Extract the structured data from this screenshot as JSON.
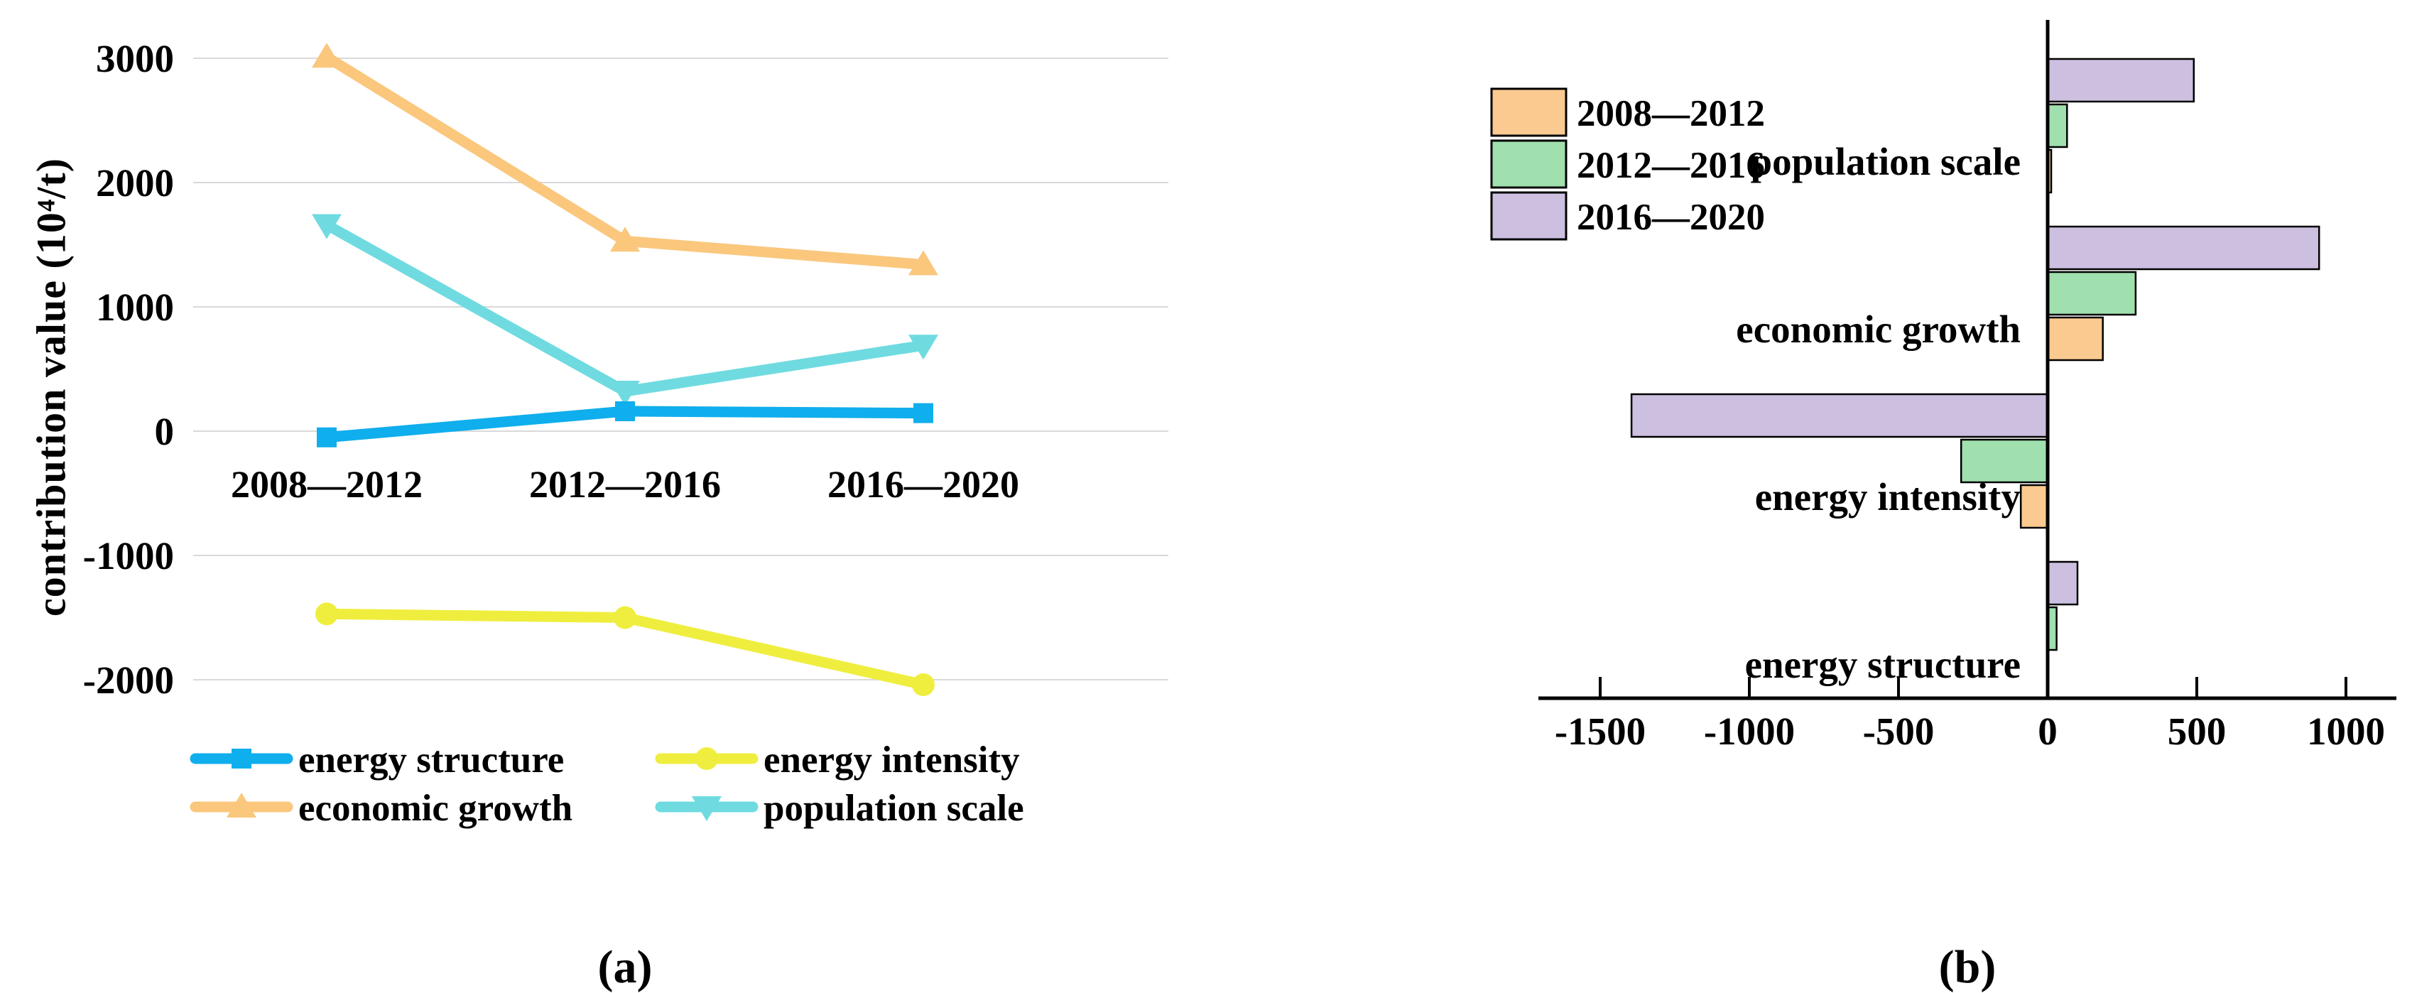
{
  "figure": {
    "caption_a": "(a)",
    "caption_b": "(b)"
  },
  "chart_data": [
    {
      "id": "a",
      "type": "line",
      "title": "",
      "xlabel": "",
      "ylabel": "contribution value (10⁴/t)",
      "categories": [
        "2008—2012",
        "2012—2016",
        "2016—2020"
      ],
      "yticks": [
        3000,
        2000,
        1000,
        0,
        -1000,
        -2000
      ],
      "ytick_labels": [
        "3000",
        "2000",
        "1000",
        "0",
        "-1000",
        "-2000"
      ],
      "ylim": [
        -2500,
        3250
      ],
      "grid": true,
      "gridline_color": "#D9D9D9",
      "legend_position": "bottom",
      "legend_order_row_major": [
        "energy structure",
        "energy intensity",
        "economic growth",
        "population scale"
      ],
      "series": [
        {
          "name": "energy structure",
          "color": "#0FAEEC",
          "marker": "square",
          "values": [
            -50,
            160,
            145
          ]
        },
        {
          "name": "economic growth",
          "color": "#FAC77D",
          "marker": "triangle-up",
          "values": [
            3010,
            1530,
            1340
          ]
        },
        {
          "name": "energy intensity",
          "color": "#EFEE3F",
          "marker": "circle",
          "values": [
            -1470,
            -1500,
            -2040
          ]
        },
        {
          "name": "population scale",
          "color": "#6FDBE0",
          "marker": "triangle-down",
          "values": [
            1660,
            320,
            690
          ]
        }
      ]
    },
    {
      "id": "b",
      "type": "bar",
      "orientation": "horizontal",
      "title": "",
      "xlabel": "",
      "ylabel": "",
      "categories": [
        "population scale",
        "economic growth",
        "energy intensity",
        "energy structure"
      ],
      "xticks": [
        -1500,
        -1000,
        -500,
        0,
        500,
        1000
      ],
      "xtick_labels": [
        "-1500",
        "-1000",
        "-500",
        "0",
        "500",
        "1000"
      ],
      "xlim": [
        -1700,
        1160
      ],
      "grid": false,
      "bar_border_color": "#000000",
      "legend_position": "top-left",
      "series": [
        {
          "name": "2008—2012",
          "color": "#FBCA90",
          "values": [
            12,
            185,
            -90,
            0
          ]
        },
        {
          "name": "2012—2016",
          "color": "#A0DFAE",
          "values": [
            65,
            295,
            -290,
            30
          ]
        },
        {
          "name": "2016—2020",
          "color": "#CDBFE0",
          "values": [
            490,
            910,
            -1395,
            100
          ]
        }
      ]
    }
  ]
}
